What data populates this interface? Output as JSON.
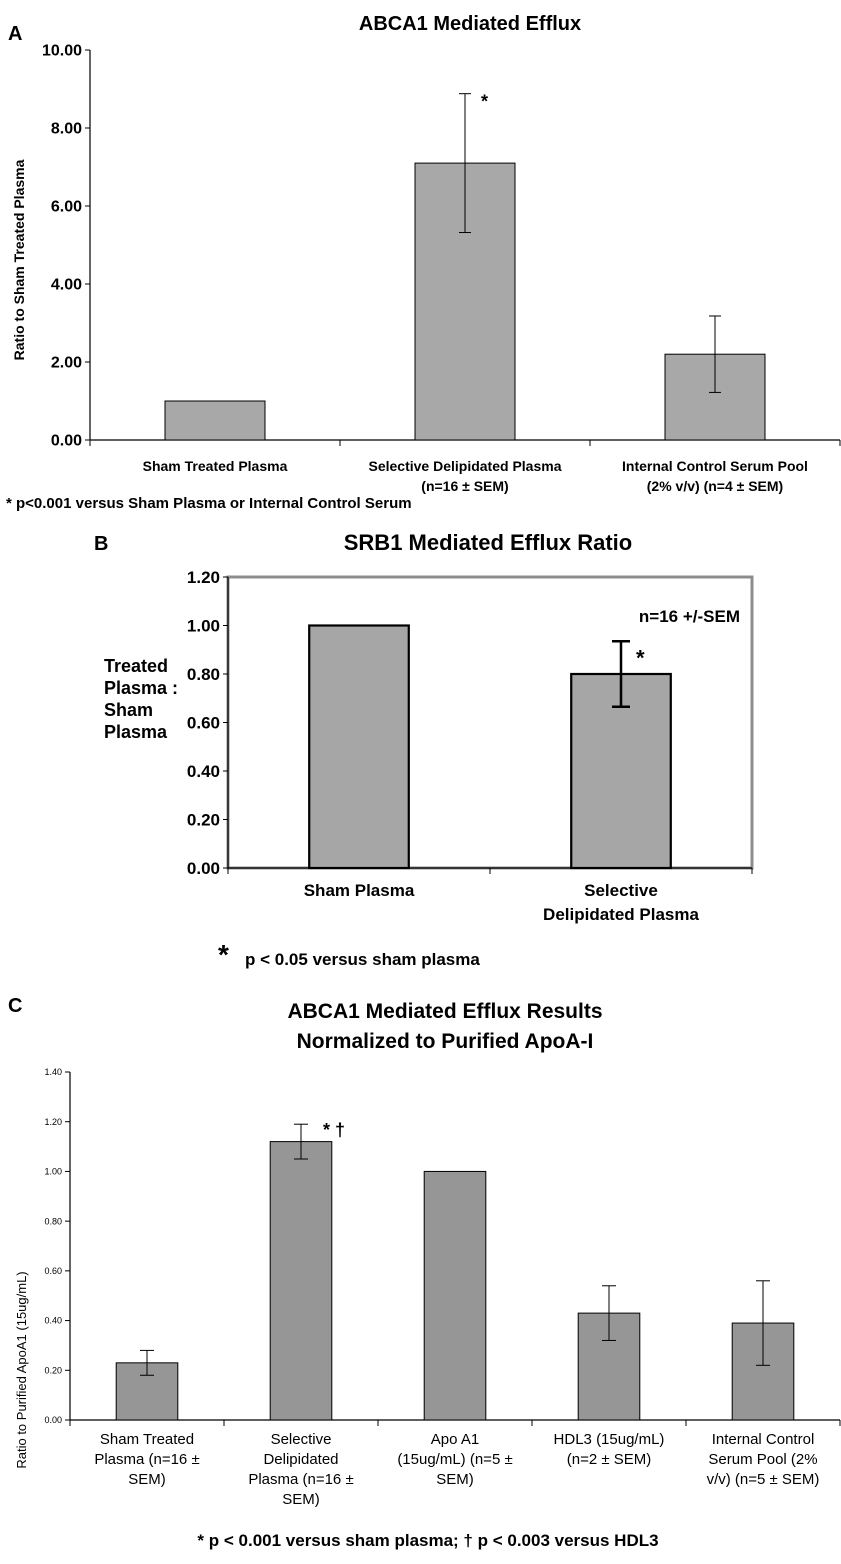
{
  "chart_data": [
    {
      "panel": "A",
      "type": "bar",
      "title": "ABCA1 Mediated Efflux",
      "ylabel": "Ratio to Sham Treated Plasma",
      "xlabel": "",
      "ylim": [
        0,
        10
      ],
      "yticks": [
        "0.00",
        "2.00",
        "4.00",
        "6.00",
        "8.00",
        "10.00"
      ],
      "categories": [
        [
          "Sham Treated Plasma"
        ],
        [
          "Selective Delipidated Plasma",
          "(n=16 ± SEM)"
        ],
        [
          "Internal Control Serum Pool",
          "(2% v/v) (n=4 ± SEM)"
        ]
      ],
      "values": [
        1.0,
        7.1,
        2.2
      ],
      "errors": [
        0,
        1.78,
        0.98
      ],
      "markers": [
        "",
        "*",
        ""
      ],
      "footnote": "* p<0.001 versus Sham Plasma or Internal Control Serum",
      "grid": false
    },
    {
      "panel": "B",
      "type": "bar",
      "title": "SRB1 Mediated Efflux Ratio",
      "ylabel": [
        "Treated",
        "Plasma :",
        "Sham",
        "Plasma"
      ],
      "xlabel": "",
      "ylim": [
        0,
        1.2
      ],
      "yticks": [
        "0.00",
        "0.20",
        "0.40",
        "0.60",
        "0.80",
        "1.00",
        "1.20"
      ],
      "categories": [
        [
          "Sham Plasma"
        ],
        [
          "Selective",
          "Delipidated Plasma"
        ]
      ],
      "values": [
        1.0,
        0.8
      ],
      "errors": [
        0,
        0.135
      ],
      "markers": [
        "",
        "*"
      ],
      "annotation": "n=16 +/-SEM",
      "footnote_star": "*",
      "footnote": "p < 0.05 versus sham plasma",
      "grid": false
    },
    {
      "panel": "C",
      "type": "bar",
      "title": [
        "ABCA1 Mediated Efflux Results",
        "Normalized to Purified ApoA-I"
      ],
      "ylabel": "Ratio to Purified ApoA1 (15ug/mL)",
      "xlabel": "",
      "ylim": [
        0,
        1.4
      ],
      "yticks": [
        "0.00",
        "0.20",
        "0.40",
        "0.60",
        "0.80",
        "1.00",
        "1.20",
        "1.40"
      ],
      "categories": [
        [
          "Sham Treated",
          "Plasma (n=16 ±",
          "SEM)"
        ],
        [
          "Selective",
          "Delipidated",
          "Plasma (n=16 ±",
          "SEM)"
        ],
        [
          "Apo A1",
          "(15ug/mL) (n=5 ±",
          "SEM)"
        ],
        [
          "HDL3 (15ug/mL)",
          "(n=2 ± SEM)"
        ],
        [
          "Internal Control",
          "Serum Pool (2%",
          "v/v) (n=5 ± SEM)"
        ]
      ],
      "values": [
        0.23,
        1.12,
        1.0,
        0.43,
        0.39
      ],
      "errors": [
        0.05,
        0.07,
        0,
        0.11,
        0.17
      ],
      "markers": [
        "",
        "* †",
        "",
        "",
        ""
      ],
      "footnote": "* p < 0.001 versus sham plasma; † p < 0.003 versus HDL3",
      "grid": false
    }
  ],
  "colors": {
    "bar_a": "#a8a8a8",
    "bar_b": "#a6a6a6",
    "bar_c": "#969696",
    "axis": "#000000",
    "frame_b": "#8c8c8c"
  }
}
